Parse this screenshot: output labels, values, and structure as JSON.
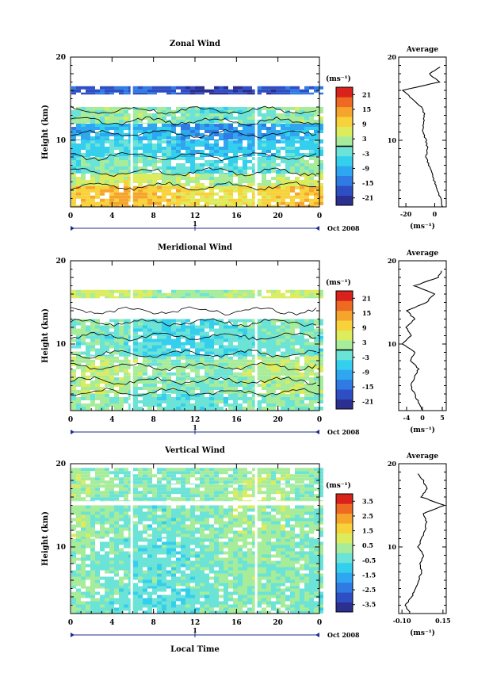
{
  "figure": {
    "xlabel": "Local Time",
    "date_label": "Oct 2008",
    "day_label": "1",
    "colors": [
      "#2b2f8f",
      "#2e4fc4",
      "#2f7be3",
      "#2fa7f0",
      "#35cfee",
      "#6be3d6",
      "#a6ec9a",
      "#dcec5c",
      "#f7d23a",
      "#f5a52c",
      "#ee6a23",
      "#d9221c"
    ]
  },
  "chart_data": [
    {
      "type": "heatmap",
      "title": "Zonal Wind",
      "xlabel": "",
      "ylabel": "Height (km)",
      "unit": "(ms⁻¹)",
      "xlim": [
        0,
        24
      ],
      "ylim": [
        2,
        20
      ],
      "x_ticks": [
        "0",
        "4",
        "8",
        "12",
        "16",
        "20",
        "0"
      ],
      "y_ticks": [
        "20",
        "10"
      ],
      "colorbar_ticks": [
        "21",
        "15",
        "9",
        "3",
        "-3",
        "-9",
        "-15",
        "-21"
      ],
      "colorbar_range": [
        -24,
        24
      ],
      "bands": [
        {
          "y0": 2.0,
          "y1": 4.5,
          "value": 10
        },
        {
          "y0": 4.5,
          "y1": 6.0,
          "value": 4
        },
        {
          "y0": 6.0,
          "y1": 8.0,
          "value": -2
        },
        {
          "y0": 8.0,
          "y1": 10.0,
          "value": -6
        },
        {
          "y0": 10.0,
          "y1": 12.0,
          "value": -10
        },
        {
          "y0": 12.0,
          "y1": 14.0,
          "value": 0
        },
        {
          "y0": 15.5,
          "y1": 16.5,
          "value": -18
        }
      ],
      "average": {
        "title": "Average",
        "xlabel": "(ms⁻¹)",
        "x_ticks": [
          "-20",
          "0"
        ],
        "xlim": [
          -25,
          8
        ],
        "heights": [
          2,
          3,
          4,
          5,
          6,
          7,
          8,
          9,
          10,
          11,
          12,
          13,
          14,
          15,
          16,
          17,
          18,
          19
        ],
        "values": [
          5,
          4,
          2,
          0,
          -2,
          -4,
          -6,
          -5,
          -6,
          -8,
          -8,
          -7,
          -9,
          -16,
          -22,
          3,
          -4,
          6
        ]
      }
    },
    {
      "type": "heatmap",
      "title": "Meridional Wind",
      "xlabel": "",
      "ylabel": "Height (km)",
      "unit": "(ms⁻¹)",
      "xlim": [
        0,
        24
      ],
      "ylim": [
        2,
        20
      ],
      "x_ticks": [
        "0",
        "4",
        "8",
        "12",
        "16",
        "20",
        "0"
      ],
      "y_ticks": [
        "20",
        "10"
      ],
      "colorbar_ticks": [
        "21",
        "15",
        "9",
        "3",
        "-3",
        "-9",
        "-15",
        "-21"
      ],
      "colorbar_range": [
        -24,
        24
      ],
      "bands": [
        {
          "y0": 2.0,
          "y1": 4.0,
          "value": -1
        },
        {
          "y0": 4.0,
          "y1": 6.0,
          "value": 1
        },
        {
          "y0": 6.0,
          "y1": 8.5,
          "value": 2
        },
        {
          "y0": 8.5,
          "y1": 11.0,
          "value": -3
        },
        {
          "y0": 11.0,
          "y1": 13.0,
          "value": -2
        },
        {
          "y0": 15.5,
          "y1": 16.5,
          "value": 3
        }
      ],
      "average": {
        "title": "Average",
        "xlabel": "(ms⁻¹)",
        "x_ticks": [
          "-4",
          "0",
          "5"
        ],
        "xlim": [
          -6,
          6
        ],
        "heights": [
          2,
          3,
          4,
          5,
          6,
          7,
          8,
          9,
          10,
          11,
          12,
          13,
          14,
          15,
          16,
          17,
          18,
          19
        ],
        "values": [
          0,
          -1,
          -2,
          -3,
          -2,
          -1,
          -3,
          -2,
          -5,
          -3,
          -4,
          -2,
          -4,
          1,
          3,
          -2,
          4,
          5
        ]
      }
    },
    {
      "type": "heatmap",
      "title": "Vertical Wind",
      "xlabel": "Local Time",
      "ylabel": "Height (km)",
      "unit": "(ms⁻¹)",
      "xlim": [
        0,
        24
      ],
      "ylim": [
        2,
        20
      ],
      "x_ticks": [
        "0",
        "4",
        "8",
        "12",
        "16",
        "20",
        "0"
      ],
      "y_ticks": [
        "20",
        "10"
      ],
      "colorbar_ticks": [
        "3.5",
        "2.5",
        "1.5",
        "0.5",
        "-0.5",
        "-1.5",
        "-2.5",
        "-3.5"
      ],
      "colorbar_range": [
        -4,
        4
      ],
      "bands": [
        {
          "y0": 2.0,
          "y1": 5.0,
          "value": -0.2
        },
        {
          "y0": 5.0,
          "y1": 11.0,
          "value": -0.1
        },
        {
          "y0": 11.0,
          "y1": 15.0,
          "value": 0.05
        },
        {
          "y0": 15.5,
          "y1": 17.5,
          "value": 0.15
        },
        {
          "y0": 17.5,
          "y1": 19.5,
          "value": 0.1
        }
      ],
      "average": {
        "title": "Average",
        "xlabel": "(ms⁻¹)",
        "x_ticks": [
          "-0.10",
          "0.15"
        ],
        "xlim": [
          -0.12,
          0.17
        ],
        "heights": [
          2,
          3,
          4,
          5,
          6,
          7,
          8,
          9,
          10,
          11,
          12,
          13,
          14,
          15,
          16,
          17,
          18,
          19
        ],
        "values": [
          -0.05,
          -0.08,
          -0.04,
          -0.02,
          0.0,
          0.02,
          0.01,
          0.03,
          0.0,
          0.02,
          0.04,
          0.05,
          0.03,
          0.16,
          0.02,
          0.05,
          0.03,
          -0.01
        ]
      }
    }
  ]
}
